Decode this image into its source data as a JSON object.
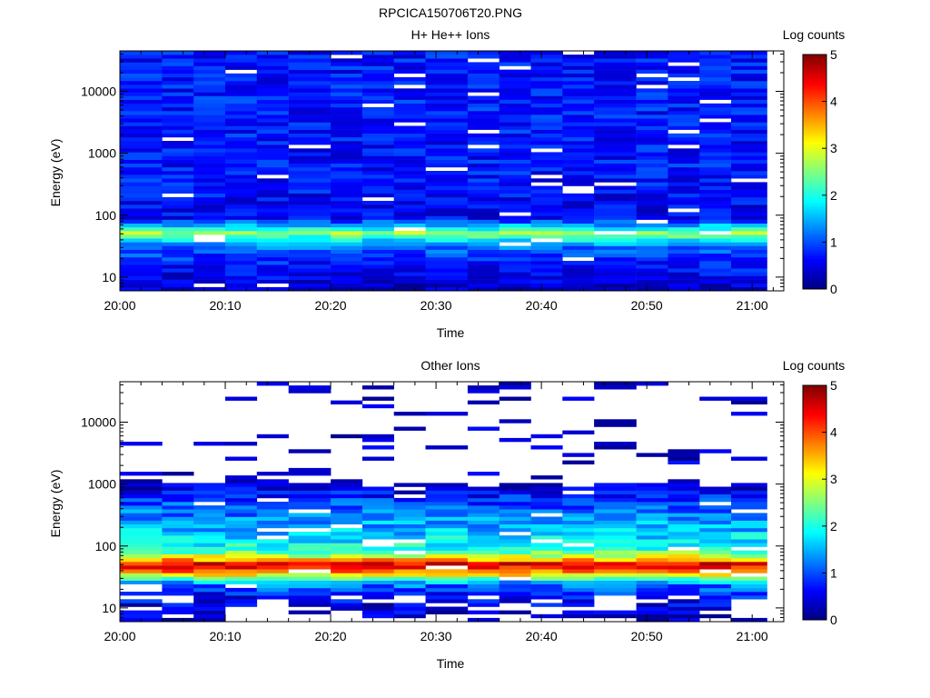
{
  "figure": {
    "title": "RPCICA150706T20.PNG"
  },
  "colors": {
    "background": "#ffffff",
    "axis": "#000000",
    "colormap": "jet"
  },
  "chart_data": [
    {
      "type": "heatmap",
      "title": "H+ He++ Ions",
      "xlabel": "Time",
      "ylabel": "Energy (eV)",
      "y_scale": "log",
      "ylim": [
        6,
        45000
      ],
      "xlim": [
        "20:00",
        "21:03"
      ],
      "x_ticks": [
        "20:00",
        "20:10",
        "20:20",
        "20:30",
        "20:40",
        "20:50",
        "21:00"
      ],
      "y_ticks": [
        "10",
        "100",
        "1000",
        "10000"
      ],
      "colorbar": {
        "label": "Log counts",
        "range": [
          0,
          5
        ],
        "ticks": [
          "0",
          "1",
          "2",
          "3",
          "4",
          "5"
        ]
      },
      "time_bins": [
        "20:00",
        "20:04",
        "20:07",
        "20:10",
        "20:13",
        "20:16",
        "20:20",
        "20:23",
        "20:26",
        "20:29",
        "20:33",
        "20:36",
        "20:39",
        "20:42",
        "20:45",
        "20:49",
        "20:52",
        "20:55",
        "20:58"
      ],
      "energy_profile": [
        {
          "energy_eV": 7,
          "log_counts": 0.4
        },
        {
          "energy_eV": 9,
          "log_counts": 0.5
        },
        {
          "energy_eV": 12,
          "log_counts": 0.6
        },
        {
          "energy_eV": 16,
          "log_counts": 0.7
        },
        {
          "energy_eV": 22,
          "log_counts": 0.9
        },
        {
          "energy_eV": 30,
          "log_counts": 1.2
        },
        {
          "energy_eV": 40,
          "log_counts": 1.8
        },
        {
          "energy_eV": 52,
          "log_counts": 2.6
        },
        {
          "energy_eV": 68,
          "log_counts": 1.5
        },
        {
          "energy_eV": 90,
          "log_counts": 0.6
        },
        {
          "energy_eV": 150,
          "log_counts": 0.6
        },
        {
          "energy_eV": 400,
          "log_counts": 0.7
        },
        {
          "energy_eV": 1500,
          "log_counts": 0.7
        },
        {
          "energy_eV": 6000,
          "log_counts": 0.75
        },
        {
          "energy_eV": 20000,
          "log_counts": 0.7
        },
        {
          "energy_eV": 40000,
          "log_counts": 0.7
        }
      ]
    },
    {
      "type": "heatmap",
      "title": "Other Ions",
      "xlabel": "Time",
      "ylabel": "Energy (eV)",
      "y_scale": "log",
      "ylim": [
        6,
        45000
      ],
      "xlim": [
        "20:00",
        "21:03"
      ],
      "x_ticks": [
        "20:00",
        "20:10",
        "20:20",
        "20:30",
        "20:40",
        "20:50",
        "21:00"
      ],
      "y_ticks": [
        "10",
        "100",
        "1000",
        "10000"
      ],
      "colorbar": {
        "label": "Log counts",
        "range": [
          0,
          5
        ],
        "ticks": [
          "0",
          "1",
          "2",
          "3",
          "4",
          "5"
        ]
      },
      "time_bins": [
        "20:00",
        "20:04",
        "20:07",
        "20:10",
        "20:13",
        "20:16",
        "20:20",
        "20:23",
        "20:26",
        "20:29",
        "20:33",
        "20:36",
        "20:39",
        "20:42",
        "20:45",
        "20:49",
        "20:52",
        "20:55",
        "20:58"
      ],
      "energy_profile": [
        {
          "energy_eV": 7,
          "log_counts": 0.3
        },
        {
          "energy_eV": 9,
          "log_counts": 0.4
        },
        {
          "energy_eV": 12,
          "log_counts": 0.5
        },
        {
          "energy_eV": 18,
          "log_counts": 0.8
        },
        {
          "energy_eV": 25,
          "log_counts": 1.3
        },
        {
          "energy_eV": 32,
          "log_counts": 2.8
        },
        {
          "energy_eV": 42,
          "log_counts": 4.2
        },
        {
          "energy_eV": 52,
          "log_counts": 4.4
        },
        {
          "energy_eV": 65,
          "log_counts": 3.1
        },
        {
          "energy_eV": 85,
          "log_counts": 2.2
        },
        {
          "energy_eV": 120,
          "log_counts": 1.8
        },
        {
          "energy_eV": 200,
          "log_counts": 1.5
        },
        {
          "energy_eV": 350,
          "log_counts": 1.2
        },
        {
          "energy_eV": 600,
          "log_counts": 0.8
        },
        {
          "energy_eV": 1000,
          "log_counts": 0.3
        },
        {
          "energy_eV": 45000,
          "log_counts": 0.2
        }
      ]
    }
  ]
}
